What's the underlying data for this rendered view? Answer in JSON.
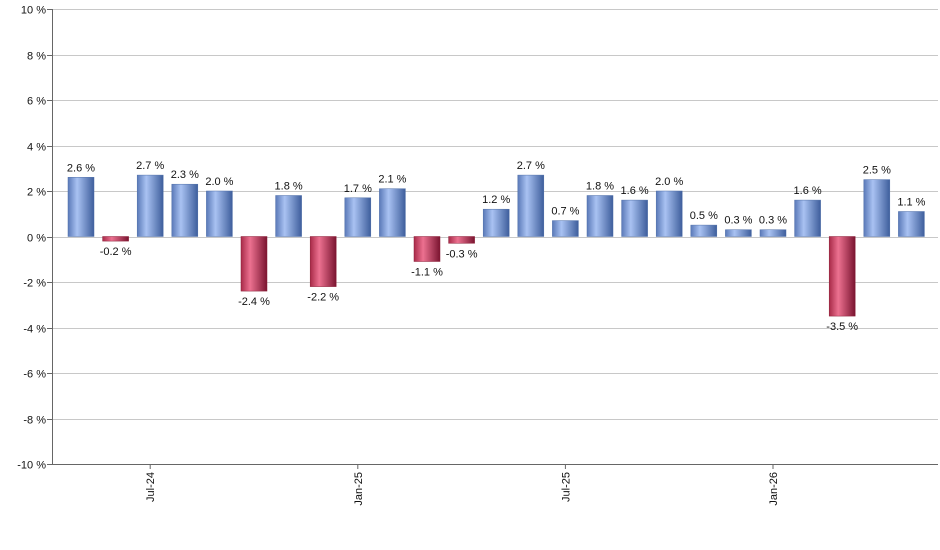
{
  "chart_data": {
    "type": "bar",
    "title": "",
    "xlabel": "",
    "ylabel": "",
    "ylim": [
      -10,
      10
    ],
    "y_ticks": [
      10,
      8,
      6,
      4,
      2,
      0,
      -2,
      -4,
      -6,
      -8,
      -10
    ],
    "y_tick_labels": [
      "10 %",
      "8 %",
      "6 %",
      "4 %",
      "2 %",
      "0 %",
      "-2 %",
      "-4 %",
      "-6 %",
      "-8 %",
      "-10 %"
    ],
    "x_tick_labels": [
      {
        "label": "Jul-24",
        "index": 2
      },
      {
        "label": "Jan-25",
        "index": 8
      },
      {
        "label": "Jul-25",
        "index": 14
      },
      {
        "label": "Jan-26",
        "index": 20
      }
    ],
    "values": [
      2.6,
      -0.2,
      2.7,
      2.3,
      2.0,
      -2.4,
      1.8,
      -2.2,
      1.7,
      2.1,
      -1.1,
      -0.3,
      1.2,
      2.7,
      0.7,
      1.8,
      1.6,
      2.0,
      0.5,
      0.3,
      0.3,
      1.6,
      -3.5,
      2.5,
      1.1
    ],
    "data_labels": [
      "2.6 %",
      "-0.2 %",
      "2.7 %",
      "2.3 %",
      "2.0 %",
      "-2.4 %",
      "1.8 %",
      "-2.2 %",
      "1.7 %",
      "2.1 %",
      "-1.1 %",
      "-0.3 %",
      "1.2 %",
      "2.7 %",
      "0.7 %",
      "1.8 %",
      "1.6 %",
      "2.0 %",
      "0.5 %",
      "0.3 %",
      "0.3 %",
      "1.6 %",
      "-3.5 %",
      "2.5 %",
      "1.1 %"
    ],
    "grid": true,
    "legend": "none",
    "colors": {
      "positive": "#7f9fe0",
      "positive_dark": "#4f6fa8",
      "negative": "#d64a6a",
      "negative_dark": "#8c1e38",
      "grid": "#c8c8c8",
      "axis": "#666666"
    }
  }
}
